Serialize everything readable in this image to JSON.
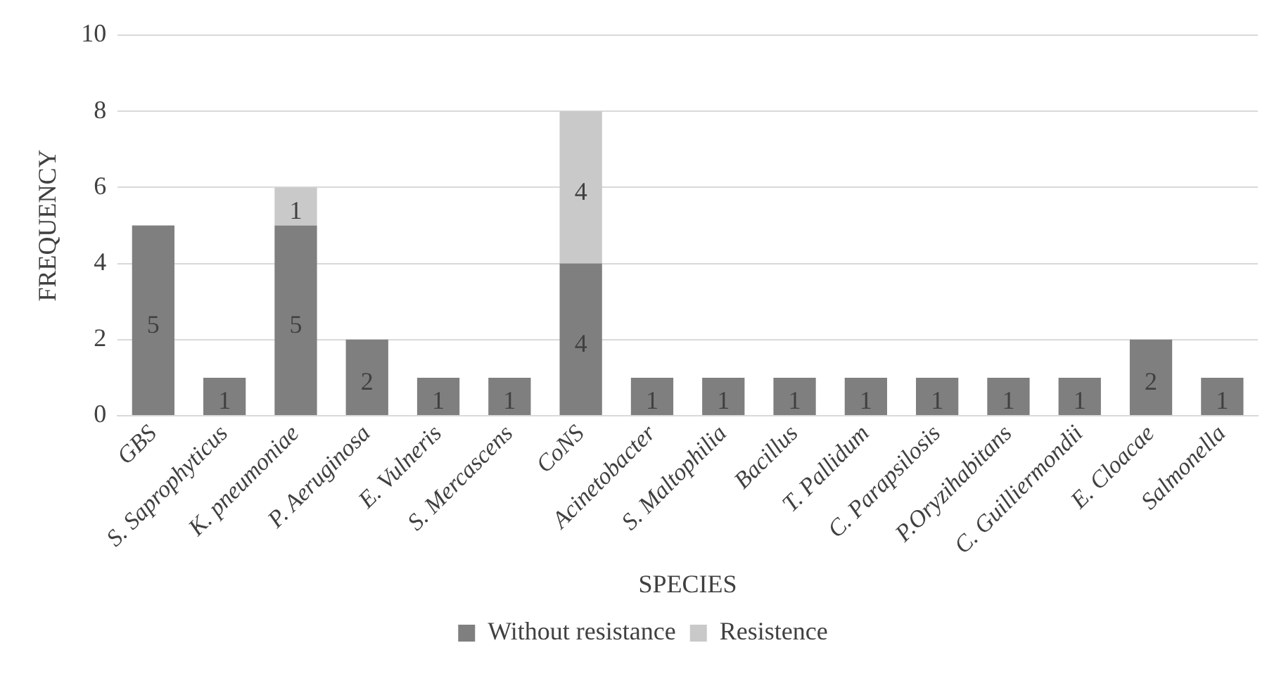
{
  "chart_data": {
    "type": "bar",
    "stacked": true,
    "xlabel": "SPECIES",
    "ylabel": "FREQUENCY",
    "categories": [
      "GBS",
      "S. Saprophyticus",
      "K. pneumoniae",
      "P. Aeruginosa",
      "E. Vulneris",
      "S. Mercascens",
      "CoNS",
      "Acinetobacter",
      "S. Maltophilia",
      "Bacillus",
      "T. Pallidum",
      "C. Parapsilosis",
      "P.Oryzihabitans",
      "C. Guilliermondii",
      "E. Cloacae",
      "Salmonella"
    ],
    "series": [
      {
        "name": "Without resistance",
        "color": "#7f7f7f",
        "values": [
          5,
          1,
          5,
          2,
          1,
          1,
          4,
          1,
          1,
          1,
          1,
          1,
          1,
          1,
          2,
          1
        ]
      },
      {
        "name": "Resistence",
        "color": "#c9c9c9",
        "values": [
          null,
          null,
          1,
          null,
          null,
          null,
          4,
          null,
          null,
          null,
          null,
          null,
          null,
          null,
          null,
          null
        ]
      }
    ],
    "ylim": [
      0,
      10
    ],
    "yticks": [
      0,
      2,
      4,
      6,
      8,
      10
    ],
    "grid": "y",
    "legend": "bottom",
    "data_labels": true
  }
}
